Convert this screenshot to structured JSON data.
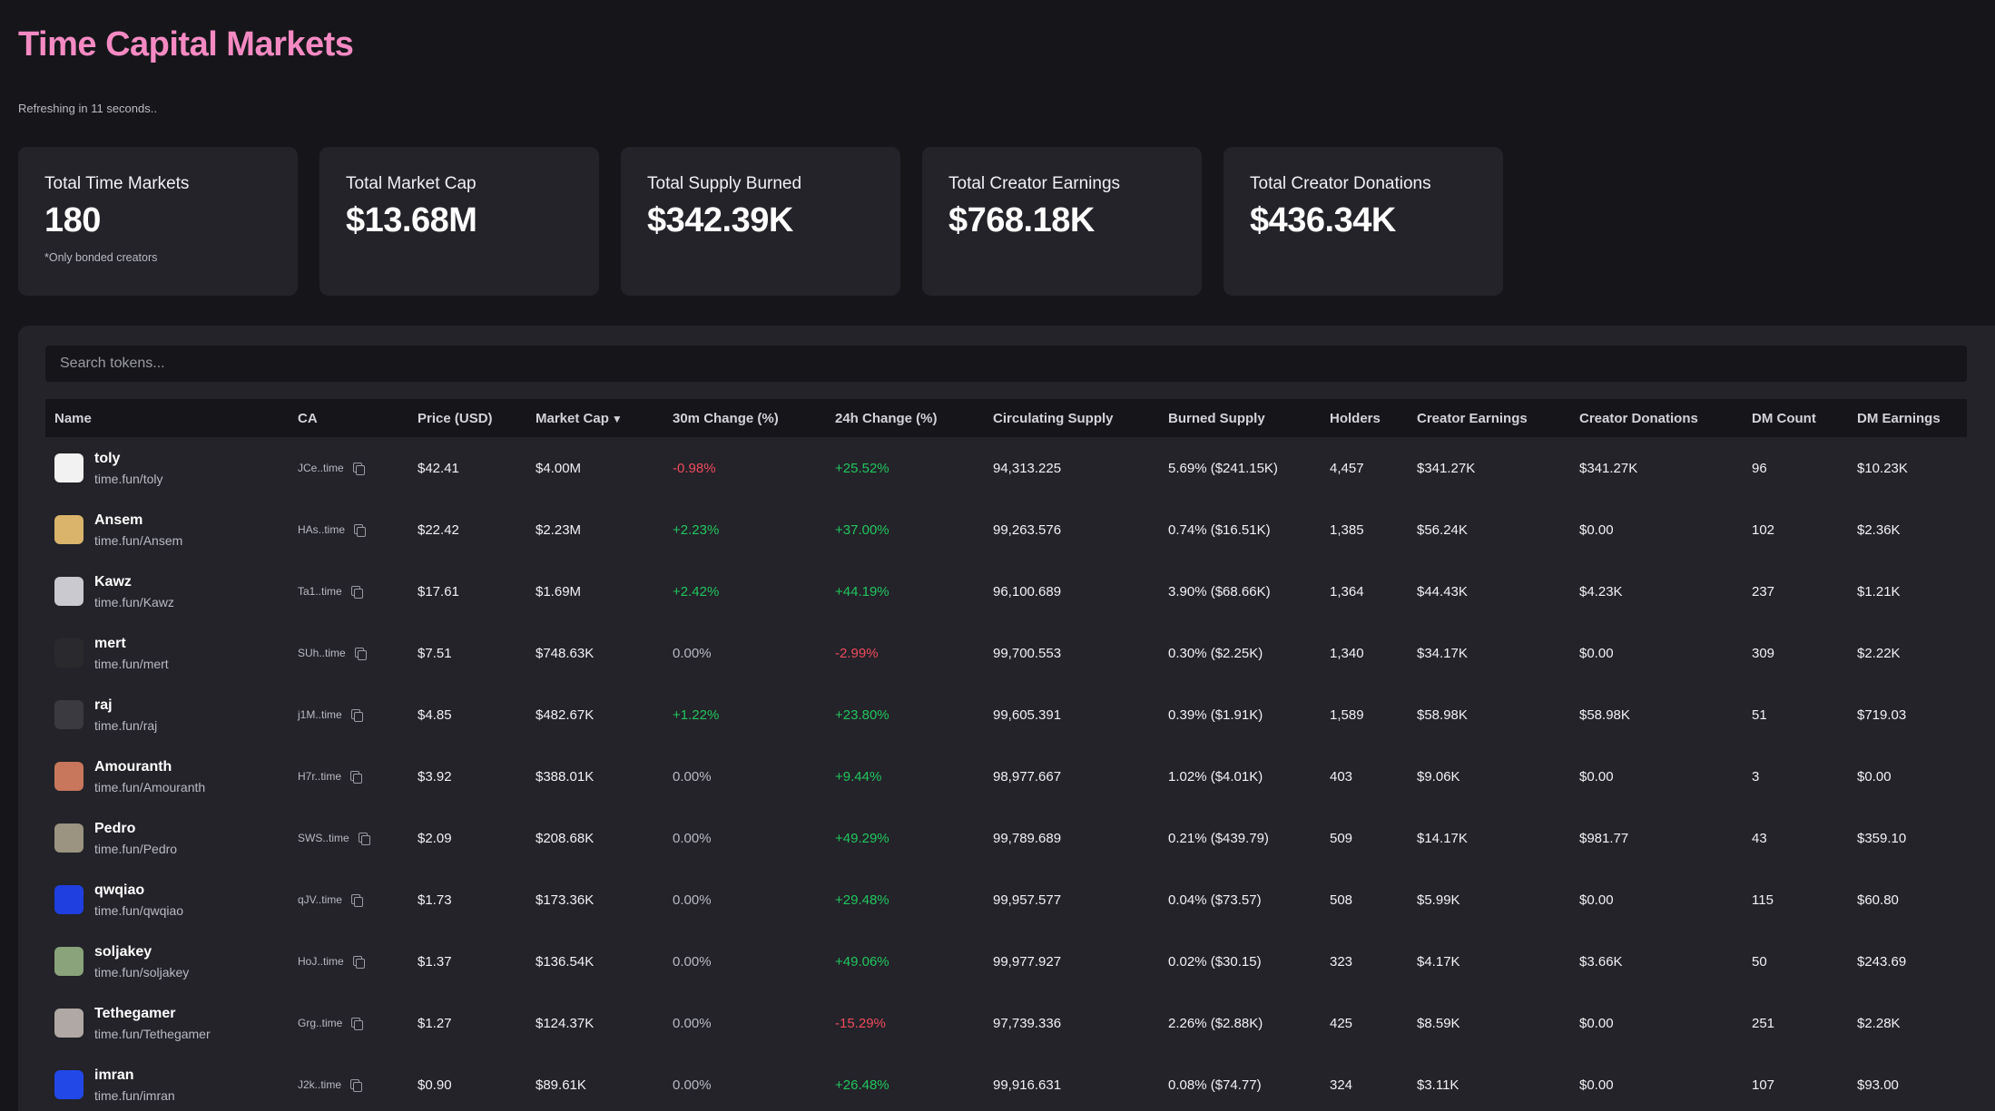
{
  "header": {
    "title": "Time Capital Markets",
    "refresh_text": "Refreshing in 11 seconds.."
  },
  "stats": [
    {
      "label": "Total Time Markets",
      "value": "180",
      "note": "*Only bonded creators"
    },
    {
      "label": "Total Market Cap",
      "value": "$13.68M",
      "note": ""
    },
    {
      "label": "Total Supply Burned",
      "value": "$342.39K",
      "note": ""
    },
    {
      "label": "Total Creator Earnings",
      "value": "$768.18K",
      "note": ""
    },
    {
      "label": "Total Creator Donations",
      "value": "$436.34K",
      "note": ""
    }
  ],
  "search": {
    "placeholder": "Search tokens...",
    "value": ""
  },
  "table": {
    "sort_arrow": "▼",
    "columns": [
      "Name",
      "CA",
      "Price (USD)",
      "Market Cap",
      "30m Change (%)",
      "24h Change (%)",
      "Circulating Supply",
      "Burned Supply",
      "Holders",
      "Creator Earnings",
      "Creator Donations",
      "DM Count",
      "DM Earnings"
    ],
    "rows": [
      {
        "name": "toly",
        "link": "time.fun/toly",
        "ca": "JCe..time",
        "price": "$42.41",
        "mcap": "$4.00M",
        "c30": "-0.98%",
        "c30_dir": "neg",
        "c24": "+25.52%",
        "c24_dir": "pos",
        "supply": "94,313.225",
        "burned": "5.69% ($241.15K)",
        "holders": "4,457",
        "earn": "$341.27K",
        "don": "$341.27K",
        "dm": "96",
        "dme": "$10.23K",
        "avatar_color": "#f2f2f2"
      },
      {
        "name": "Ansem",
        "link": "time.fun/Ansem",
        "ca": "HAs..time",
        "price": "$22.42",
        "mcap": "$2.23M",
        "c30": "+2.23%",
        "c30_dir": "pos",
        "c24": "+37.00%",
        "c24_dir": "pos",
        "supply": "99,263.576",
        "burned": "0.74% ($16.51K)",
        "holders": "1,385",
        "earn": "$56.24K",
        "don": "$0.00",
        "dm": "102",
        "dme": "$2.36K",
        "avatar_color": "#d9b46a"
      },
      {
        "name": "Kawz",
        "link": "time.fun/Kawz",
        "ca": "Ta1..time",
        "price": "$17.61",
        "mcap": "$1.69M",
        "c30": "+2.42%",
        "c30_dir": "pos",
        "c24": "+44.19%",
        "c24_dir": "pos",
        "supply": "96,100.689",
        "burned": "3.90% ($68.66K)",
        "holders": "1,364",
        "earn": "$44.43K",
        "don": "$4.23K",
        "dm": "237",
        "dme": "$1.21K",
        "avatar_color": "#c9c9cf"
      },
      {
        "name": "mert",
        "link": "time.fun/mert",
        "ca": "SUh..time",
        "price": "$7.51",
        "mcap": "$748.63K",
        "c30": "0.00%",
        "c30_dir": "neutral",
        "c24": "-2.99%",
        "c24_dir": "neg",
        "supply": "99,700.553",
        "burned": "0.30% ($2.25K)",
        "holders": "1,340",
        "earn": "$34.17K",
        "don": "$0.00",
        "dm": "309",
        "dme": "$2.22K",
        "avatar_color": "#2a2a2e"
      },
      {
        "name": "raj",
        "link": "time.fun/raj",
        "ca": "j1M..time",
        "price": "$4.85",
        "mcap": "$482.67K",
        "c30": "+1.22%",
        "c30_dir": "pos",
        "c24": "+23.80%",
        "c24_dir": "pos",
        "supply": "99,605.391",
        "burned": "0.39% ($1.91K)",
        "holders": "1,589",
        "earn": "$58.98K",
        "don": "$58.98K",
        "dm": "51",
        "dme": "$719.03",
        "avatar_color": "#3a3a40"
      },
      {
        "name": "Amouranth",
        "link": "time.fun/Amouranth",
        "ca": "H7r..time",
        "price": "$3.92",
        "mcap": "$388.01K",
        "c30": "0.00%",
        "c30_dir": "neutral",
        "c24": "+9.44%",
        "c24_dir": "pos",
        "supply": "98,977.667",
        "burned": "1.02% ($4.01K)",
        "holders": "403",
        "earn": "$9.06K",
        "don": "$0.00",
        "dm": "3",
        "dme": "$0.00",
        "avatar_color": "#c8765c"
      },
      {
        "name": "Pedro",
        "link": "time.fun/Pedro",
        "ca": "SWS..time",
        "price": "$2.09",
        "mcap": "$208.68K",
        "c30": "0.00%",
        "c30_dir": "neutral",
        "c24": "+49.29%",
        "c24_dir": "pos",
        "supply": "99,789.689",
        "burned": "0.21% ($439.79)",
        "holders": "509",
        "earn": "$14.17K",
        "don": "$981.77",
        "dm": "43",
        "dme": "$359.10",
        "avatar_color": "#9a9480"
      },
      {
        "name": "qwqiao",
        "link": "time.fun/qwqiao",
        "ca": "qJV..time",
        "price": "$1.73",
        "mcap": "$173.36K",
        "c30": "0.00%",
        "c30_dir": "neutral",
        "c24": "+29.48%",
        "c24_dir": "pos",
        "supply": "99,957.577",
        "burned": "0.04% ($73.57)",
        "holders": "508",
        "earn": "$5.99K",
        "don": "$0.00",
        "dm": "115",
        "dme": "$60.80",
        "avatar_color": "#1f3fe0"
      },
      {
        "name": "soljakey",
        "link": "time.fun/soljakey",
        "ca": "HoJ..time",
        "price": "$1.37",
        "mcap": "$136.54K",
        "c30": "0.00%",
        "c30_dir": "neutral",
        "c24": "+49.06%",
        "c24_dir": "pos",
        "supply": "99,977.927",
        "burned": "0.02% ($30.15)",
        "holders": "323",
        "earn": "$4.17K",
        "don": "$3.66K",
        "dm": "50",
        "dme": "$243.69",
        "avatar_color": "#8aa37a"
      },
      {
        "name": "Tethegamer",
        "link": "time.fun/Tethegamer",
        "ca": "Grg..time",
        "price": "$1.27",
        "mcap": "$124.37K",
        "c30": "0.00%",
        "c30_dir": "neutral",
        "c24": "-15.29%",
        "c24_dir": "neg",
        "supply": "97,739.336",
        "burned": "2.26% ($2.88K)",
        "holders": "425",
        "earn": "$8.59K",
        "don": "$0.00",
        "dm": "251",
        "dme": "$2.28K",
        "avatar_color": "#b0a8a4"
      },
      {
        "name": "imran",
        "link": "time.fun/imran",
        "ca": "J2k..time",
        "price": "$0.90",
        "mcap": "$89.61K",
        "c30": "0.00%",
        "c30_dir": "neutral",
        "c24": "+26.48%",
        "c24_dir": "pos",
        "supply": "99,916.631",
        "burned": "0.08% ($74.77)",
        "holders": "324",
        "earn": "$3.11K",
        "don": "$0.00",
        "dm": "107",
        "dme": "$93.00",
        "avatar_color": "#2348e8"
      }
    ]
  }
}
